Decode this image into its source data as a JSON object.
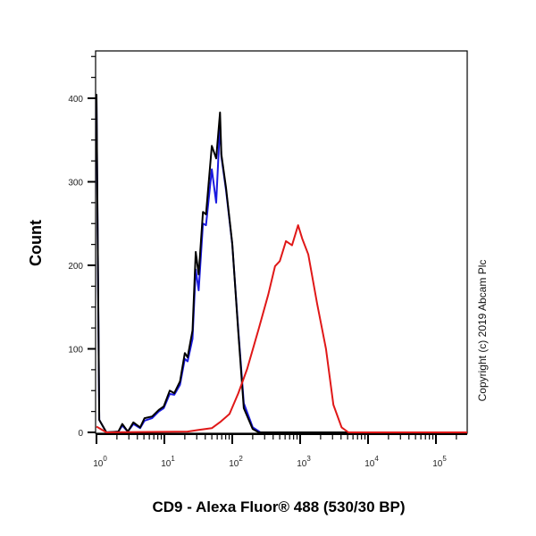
{
  "chart_data": {
    "type": "line",
    "title": "",
    "xlabel": "CD9 - Alexa Fluor® 488 (530/30 BP)",
    "ylabel": "Count",
    "x_scale": "log",
    "xlim": [
      1,
      288000
    ],
    "ylim": [
      0,
      457
    ],
    "grid": false,
    "legend": "none",
    "x_ticks": [
      1,
      10,
      100,
      1000,
      10000,
      100000
    ],
    "x_tick_labels": [
      {
        "base": "10",
        "exp": "0"
      },
      {
        "base": "10",
        "exp": "1"
      },
      {
        "base": "10",
        "exp": "2"
      },
      {
        "base": "10",
        "exp": "3"
      },
      {
        "base": "10",
        "exp": "4"
      },
      {
        "base": "10",
        "exp": "5"
      }
    ],
    "y_ticks": [
      0,
      100,
      200,
      300,
      400
    ],
    "y_tick_labels": [
      "0",
      "100",
      "200",
      "300",
      "400"
    ],
    "series": [
      {
        "color": "#1a1adf",
        "x": [
          1.0,
          1.1,
          1.4,
          2.1,
          2.4,
          2.9,
          3.5,
          4.4,
          5.1,
          6.6,
          8.3,
          9.8,
          12,
          14,
          17,
          20,
          22,
          26,
          29,
          32,
          37,
          41,
          50,
          58,
          66,
          69,
          81,
          100,
          123,
          148,
          200,
          260,
          288000
        ],
        "y": [
          400,
          15,
          0,
          1,
          8,
          1,
          10,
          5,
          14,
          17,
          25,
          29,
          46,
          45,
          57,
          88,
          85,
          112,
          195,
          170,
          250,
          248,
          315,
          275,
          370,
          330,
          290,
          225,
          122,
          35,
          6,
          0,
          0
        ]
      },
      {
        "color": "#000000",
        "x": [
          1.0,
          1.1,
          1.4,
          2.1,
          2.4,
          2.9,
          3.5,
          4.4,
          5.1,
          6.6,
          8.3,
          9.8,
          12,
          14,
          17,
          20,
          22,
          26,
          29,
          32,
          37,
          41,
          50,
          58,
          66,
          69,
          81,
          100,
          123,
          148,
          200,
          245,
          288000
        ],
        "y": [
          405,
          15,
          0,
          1,
          10,
          1,
          12,
          6,
          17,
          19,
          27,
          31,
          50,
          47,
          61,
          95,
          90,
          122,
          216,
          189,
          264,
          261,
          343,
          328,
          383,
          333,
          293,
          226,
          119,
          29,
          4,
          0,
          0
        ]
      },
      {
        "color": "#e01818",
        "x": [
          1.0,
          1.4,
          22,
          32,
          50,
          68,
          91,
          123,
          166,
          245,
          339,
          427,
          501,
          617,
          759,
          933,
          1072,
          1318,
          1778,
          2399,
          3090,
          4074,
          5129,
          288000
        ],
        "y": [
          7,
          0,
          1,
          3,
          5,
          13,
          22,
          47,
          76,
          124,
          165,
          199,
          205,
          229,
          224,
          248,
          232,
          213,
          154,
          100,
          33,
          6,
          0,
          0
        ]
      }
    ]
  },
  "watermark": "Copyright (c) 2019 Abcam Plc"
}
